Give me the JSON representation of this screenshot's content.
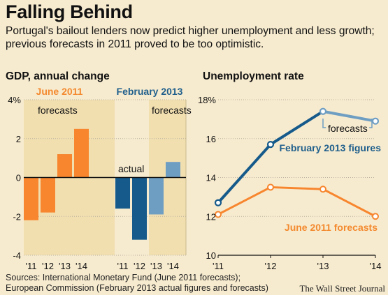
{
  "title": "Falling Behind",
  "subtitle": "Portugal's bailout lenders now predict higher unemployment and less growth; previous forecasts in 2011 proved to be too optimistic.",
  "sources_line1": "Sources: International Monetary Fund (June 2011 forecasts);",
  "sources_line2": "European Commission (February 2013 actual figures and forecasts)",
  "credit": "The Wall Street Journal",
  "colors": {
    "background": "#f7ebcf",
    "forecast_shade": "#f1dfb0",
    "orange": "#f7862e",
    "dark_blue": "#155a8a",
    "light_blue": "#6f9ec3",
    "feb_label": "#1f5f8c",
    "jun_label": "#f38a2f"
  },
  "chart_data": [
    {
      "type": "bar",
      "title": "GDP, annual change",
      "ylim": [
        -4,
        4
      ],
      "yticks": [
        "4%",
        "2",
        "0",
        "-2",
        "-4"
      ],
      "panels": [
        {
          "name": "June 2011",
          "categories": [
            "'11",
            "'12",
            "'13",
            "'14"
          ],
          "values": [
            -2.2,
            -1.8,
            1.2,
            2.5
          ],
          "kinds": [
            "forecast",
            "forecast",
            "forecast",
            "forecast"
          ],
          "annotation": "forecasts"
        },
        {
          "name": "February 2013",
          "categories": [
            "'11",
            "'12",
            "'13",
            "'14"
          ],
          "values": [
            -1.6,
            -3.2,
            -1.9,
            0.8
          ],
          "kinds": [
            "actual",
            "actual",
            "forecast",
            "forecast"
          ],
          "annotations": [
            "actual",
            "forecasts"
          ]
        }
      ]
    },
    {
      "type": "line",
      "title": "Unemployment rate",
      "x": [
        "'11",
        "'12",
        "'13",
        "'14"
      ],
      "ylim": [
        10,
        18
      ],
      "yticks": [
        "18%",
        "16",
        "14",
        "12",
        "10"
      ],
      "series": [
        {
          "name": "February 2013 figures",
          "values": [
            12.7,
            15.7,
            17.4,
            16.9
          ],
          "forecast_from_index": 2,
          "annotation": "forecasts"
        },
        {
          "name": "June 2011 forecasts",
          "values": [
            12.1,
            13.5,
            13.4,
            12.0
          ]
        }
      ]
    }
  ]
}
